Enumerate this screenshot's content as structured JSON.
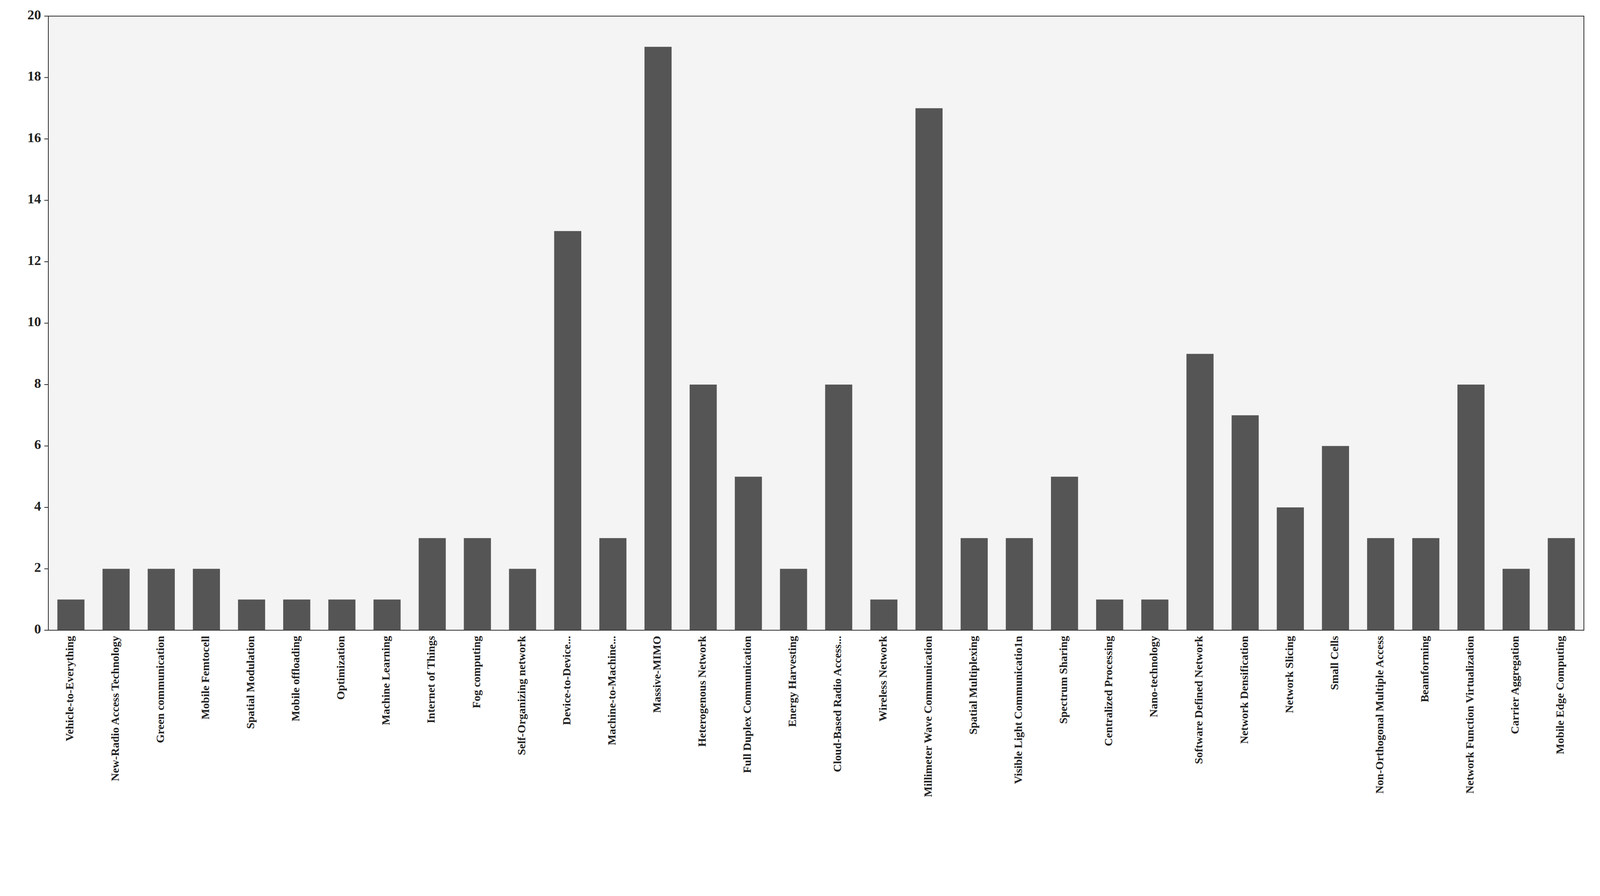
{
  "chart_data": {
    "type": "bar",
    "categories": [
      "Vehicle-to-Everything",
      "New-Radio Access Technology",
      "Green communication",
      "Mobile Femtocell",
      "Spatial Modulation",
      "Mobile offloading",
      "Optimization",
      "Machine Learning",
      "Internet of Things",
      "Fog computing",
      "Self-Organizing network",
      "Device-to-Device...",
      "Machine-to-Machine...",
      "Massive-MIMO",
      "Heterogenous Network",
      "Full Duplex Communication",
      "Energy Harvesting",
      "Cloud-Based Radio Access...",
      "Wireless Network",
      "Millimeter Wave Communication",
      "Spatial Multiplexing",
      "Visible Light Communicatio1n",
      "Spectrum Sharing",
      "Centralized Processing",
      "Nano-technology",
      "Software Defined Network",
      "Network Densification",
      "Network Slicing",
      "Small Cells",
      "Non-Orthogonal Multiple Access",
      "Beamforming",
      "Network Function Virtualization",
      "Carrier Aggregation",
      "Mobile Edge Computing"
    ],
    "values": [
      1,
      2,
      2,
      2,
      1,
      1,
      1,
      1,
      3,
      3,
      2,
      13,
      3,
      19,
      8,
      5,
      2,
      8,
      1,
      17,
      3,
      3,
      5,
      1,
      1,
      9,
      7,
      4,
      6,
      3,
      3,
      8,
      2,
      3
    ],
    "color": "#555555",
    "ylim": [
      0,
      20
    ],
    "yticks": [
      0,
      2,
      4,
      6,
      8,
      10,
      12,
      14,
      16,
      18,
      20
    ],
    "grid": false
  }
}
